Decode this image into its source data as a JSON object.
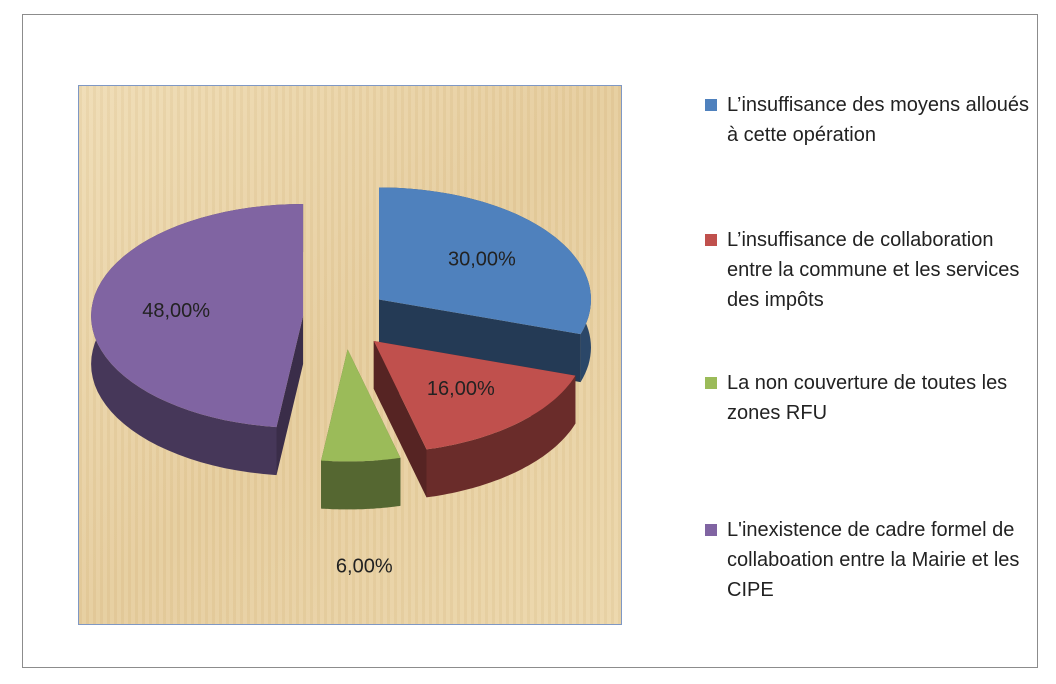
{
  "chart_data": {
    "type": "pie",
    "categories": [
      "L’insuffisance des moyens alloués à cette opération",
      "L’insuffisance de collaboration entre la commune et les services des impôts",
      "La non couverture de toutes les zones RFU",
      "L'inexistence de cadre formel de collaboation entre la Mairie et les CIPE"
    ],
    "values": [
      30,
      16,
      6,
      48
    ],
    "value_labels": [
      "30,00%",
      "16,00%",
      "6,00%",
      "48,00%"
    ],
    "colors": [
      "#4f81bd",
      "#c0504d",
      "#9bbb59",
      "#8064a2"
    ],
    "legend": "right"
  }
}
